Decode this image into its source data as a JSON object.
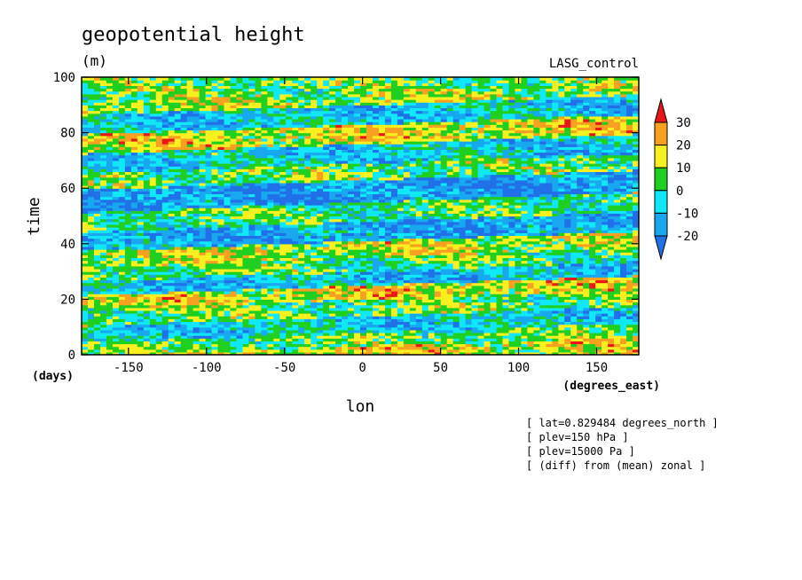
{
  "chart_data": {
    "type": "heatmap",
    "title": "geopotential height",
    "units": "(m)",
    "experiment": "LASG_control",
    "xlabel": "lon",
    "x_units": "(degrees_east)",
    "ylabel": "time",
    "y_units": "(days)",
    "xlim": [
      -180,
      177
    ],
    "ylim": [
      0,
      100
    ],
    "x_ticks": [
      -150,
      -100,
      -50,
      0,
      50,
      100,
      150
    ],
    "y_ticks": [
      0,
      20,
      40,
      60,
      80,
      100
    ],
    "colorbar": {
      "levels": [
        -20,
        -10,
        0,
        10,
        20,
        30
      ],
      "colors": [
        "#2070e8",
        "#18a8f0",
        "#10e8f8",
        "#20d020",
        "#f8f020",
        "#f8a020",
        "#e81818"
      ]
    },
    "bands": [
      {
        "y0": 0,
        "y1": 3,
        "value": 15
      },
      {
        "y0": 3,
        "y1": 8,
        "value": 5
      },
      {
        "y0": 8,
        "y1": 14,
        "value": -8
      },
      {
        "y0": 14,
        "y1": 20,
        "value": 5
      },
      {
        "y0": 20,
        "y1": 25,
        "value": 15
      },
      {
        "y0": 25,
        "y1": 30,
        "value": -12
      },
      {
        "y0": 30,
        "y1": 35,
        "value": 3
      },
      {
        "y0": 35,
        "y1": 41,
        "value": 12
      },
      {
        "y0": 41,
        "y1": 48,
        "value": -15
      },
      {
        "y0": 48,
        "y1": 55,
        "value": 2
      },
      {
        "y0": 55,
        "y1": 63,
        "value": -18
      },
      {
        "y0": 63,
        "y1": 69,
        "value": 5
      },
      {
        "y0": 69,
        "y1": 76,
        "value": -8
      },
      {
        "y0": 76,
        "y1": 83,
        "value": 15
      },
      {
        "y0": 83,
        "y1": 90,
        "value": -10
      },
      {
        "y0": 90,
        "y1": 95,
        "value": 10
      },
      {
        "y0": 95,
        "y1": 100,
        "value": 5
      }
    ]
  },
  "annotations": [
    "[ lat=0.829484 degrees_north ]",
    "[ plev=150 hPa ]",
    "[ plev=15000 Pa ]",
    "[ (diff) from (mean) zonal ]"
  ]
}
